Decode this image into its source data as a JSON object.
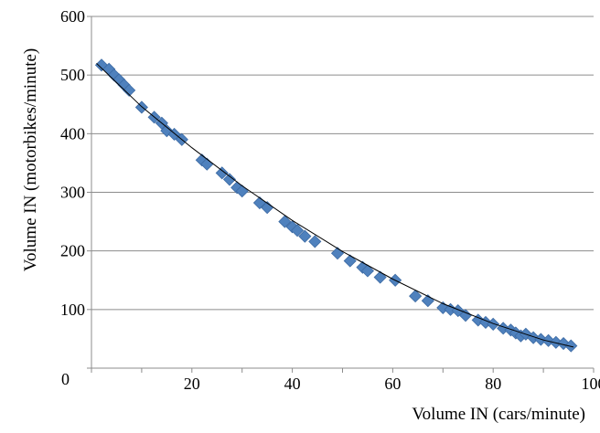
{
  "chart_data": {
    "type": "scatter",
    "xlabel": "Volume IN (cars/minute)",
    "ylabel": "Volume IN (motorbikes/minute)",
    "xlim": [
      0,
      100
    ],
    "ylim": [
      0,
      600
    ],
    "x_ticks": [
      20,
      40,
      60,
      80,
      100
    ],
    "y_ticks": [
      0,
      100,
      200,
      300,
      400,
      500,
      600
    ],
    "grid": "horizontal",
    "legend": "none",
    "marker": "diamond",
    "marker_color": "#4f81bd",
    "trendline": {
      "type": "polynomial",
      "color": "#000000",
      "points": [
        [
          1,
          520
        ],
        [
          10,
          446
        ],
        [
          20,
          376
        ],
        [
          30,
          311
        ],
        [
          40,
          252
        ],
        [
          50,
          199
        ],
        [
          60,
          152
        ],
        [
          70,
          110
        ],
        [
          80,
          76
        ],
        [
          90,
          48
        ],
        [
          96,
          36
        ]
      ]
    },
    "series": [
      {
        "points": [
          [
            2,
            517
          ],
          [
            3.5,
            510
          ],
          [
            4.5,
            500
          ],
          [
            5.5,
            492
          ],
          [
            6.5,
            483
          ],
          [
            7.5,
            474
          ],
          [
            10,
            445
          ],
          [
            12.5,
            428
          ],
          [
            14,
            418
          ],
          [
            15,
            405
          ],
          [
            16.5,
            399
          ],
          [
            18,
            390
          ],
          [
            22,
            355
          ],
          [
            23,
            348
          ],
          [
            26,
            333
          ],
          [
            27.5,
            322
          ],
          [
            29,
            308
          ],
          [
            30,
            302
          ],
          [
            33.5,
            282
          ],
          [
            35,
            274
          ],
          [
            38.5,
            250
          ],
          [
            40,
            241
          ],
          [
            41,
            235
          ],
          [
            42.5,
            225
          ],
          [
            44.5,
            216
          ],
          [
            49,
            196
          ],
          [
            51.5,
            183
          ],
          [
            54,
            172
          ],
          [
            55,
            166
          ],
          [
            57.5,
            155
          ],
          [
            60.5,
            150
          ],
          [
            64.5,
            123
          ],
          [
            67,
            115
          ],
          [
            70,
            103
          ],
          [
            71.5,
            100
          ],
          [
            73,
            98
          ],
          [
            74.5,
            90
          ],
          [
            77,
            82
          ],
          [
            78.5,
            78
          ],
          [
            80,
            75
          ],
          [
            82,
            68
          ],
          [
            83.5,
            65
          ],
          [
            84.5,
            60
          ],
          [
            85.5,
            55
          ],
          [
            86.5,
            58
          ],
          [
            88,
            52
          ],
          [
            89.5,
            49
          ],
          [
            91,
            47
          ],
          [
            92.5,
            44
          ],
          [
            94,
            42
          ],
          [
            95.5,
            38
          ]
        ]
      }
    ]
  }
}
